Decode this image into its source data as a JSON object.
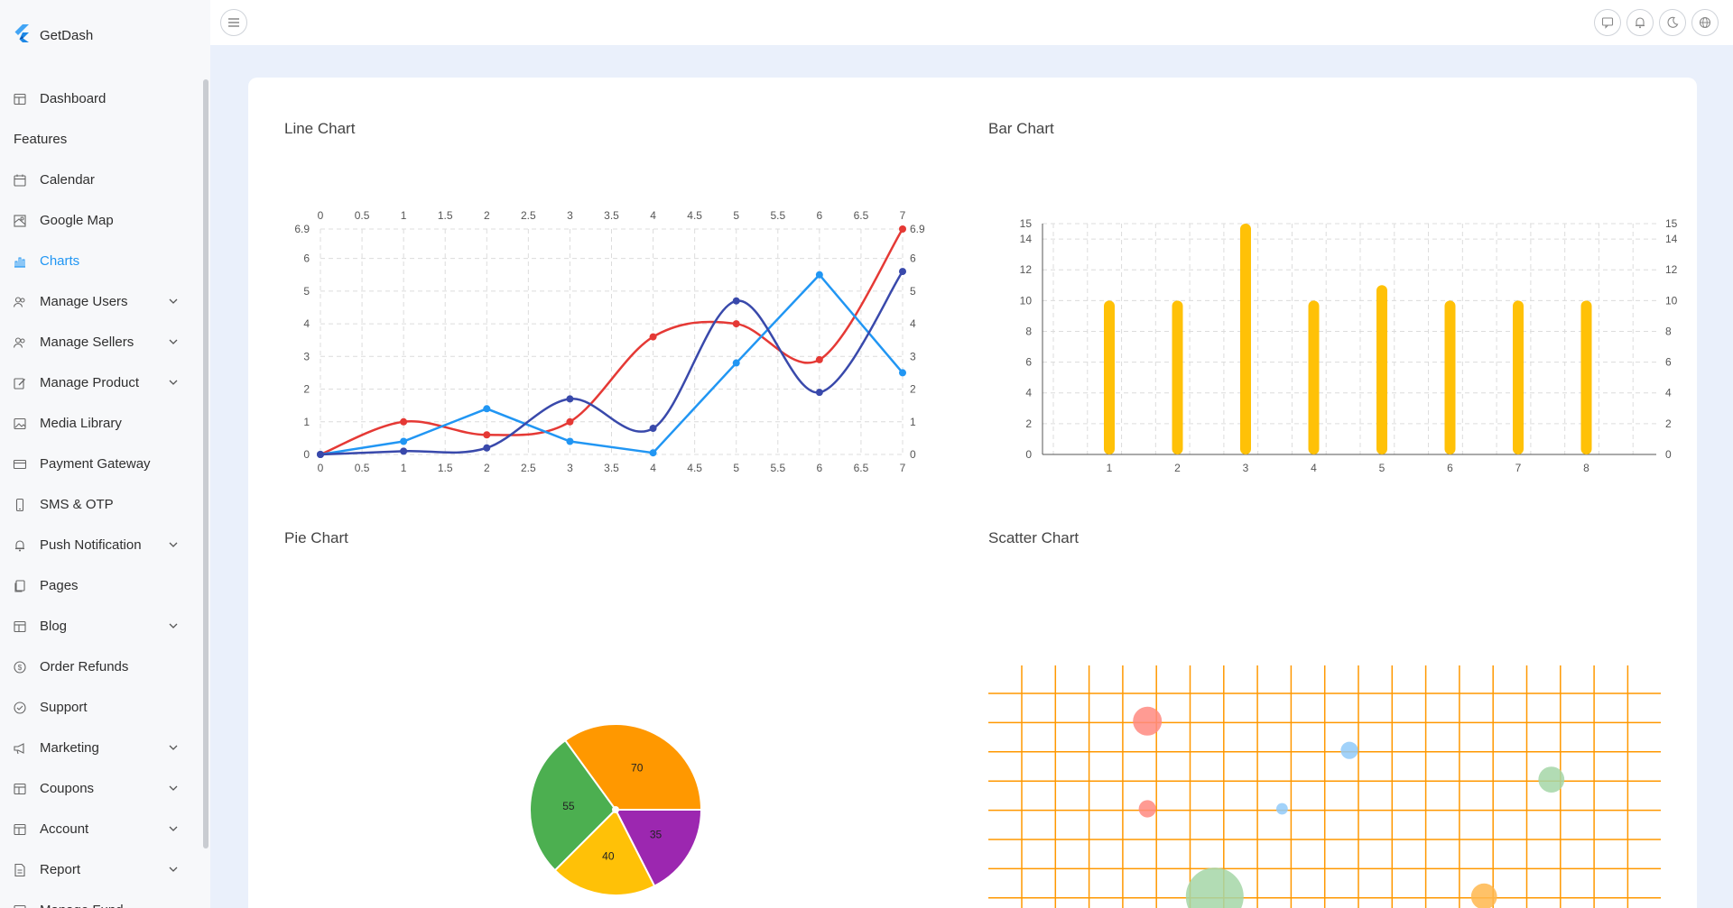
{
  "brand": {
    "name": "GetDash",
    "logo_icon": "flutter-logo-icon"
  },
  "sidebar": {
    "items": [
      {
        "label": "Dashboard",
        "icon": "dashboard-icon",
        "expandable": false,
        "active": false
      },
      {
        "section": "Features"
      },
      {
        "label": "Calendar",
        "icon": "calendar-icon",
        "expandable": false,
        "active": false
      },
      {
        "label": "Google Map",
        "icon": "map-icon",
        "expandable": false,
        "active": false
      },
      {
        "label": "Charts",
        "icon": "chart-icon",
        "expandable": false,
        "active": true
      },
      {
        "label": "Manage Users",
        "icon": "users-icon",
        "expandable": true,
        "active": false
      },
      {
        "label": "Manage Sellers",
        "icon": "sellers-icon",
        "expandable": true,
        "active": false
      },
      {
        "label": "Manage Product",
        "icon": "product-edit-icon",
        "expandable": true,
        "active": false
      },
      {
        "label": "Media Library",
        "icon": "image-icon",
        "expandable": false,
        "active": false
      },
      {
        "label": "Payment Gateway",
        "icon": "credit-card-icon",
        "expandable": false,
        "active": false
      },
      {
        "label": "SMS & OTP",
        "icon": "phone-icon",
        "expandable": false,
        "active": false
      },
      {
        "label": "Push Notification",
        "icon": "bell-icon",
        "expandable": true,
        "active": false
      },
      {
        "label": "Pages",
        "icon": "pages-icon",
        "expandable": false,
        "active": false
      },
      {
        "label": "Blog",
        "icon": "blog-icon",
        "expandable": true,
        "active": false
      },
      {
        "label": "Order Refunds",
        "icon": "dollar-icon",
        "expandable": false,
        "active": false
      },
      {
        "label": "Support",
        "icon": "support-icon",
        "expandable": false,
        "active": false
      },
      {
        "label": "Marketing",
        "icon": "megaphone-icon",
        "expandable": true,
        "active": false
      },
      {
        "label": "Coupons",
        "icon": "coupon-icon",
        "expandable": true,
        "active": false
      },
      {
        "label": "Account",
        "icon": "account-icon",
        "expandable": true,
        "active": false
      },
      {
        "label": "Report",
        "icon": "report-icon",
        "expandable": true,
        "active": false
      },
      {
        "label": "Manage Fund",
        "icon": "fund-icon",
        "expandable": false,
        "active": false
      }
    ]
  },
  "topbar": {
    "menu_icon": "menu-icon",
    "actions": [
      "message-icon",
      "bell-icon",
      "moon-icon",
      "globe-icon"
    ]
  },
  "colors": {
    "accent": "#2196f3",
    "line_red": "#e53935",
    "line_blue": "#2196f3",
    "line_indigo": "#3949ab",
    "bar": "#ffc107",
    "pie": [
      "#ff9800",
      "#4caf50",
      "#ffc107",
      "#9c27b0"
    ],
    "scatter_grid": "#ff9800"
  },
  "titles": {
    "line": "Line Chart",
    "bar": "Bar Chart",
    "pie": "Pie Chart",
    "scatter": "Scatter Chart"
  },
  "chart_data": [
    {
      "type": "line",
      "title": "Line Chart",
      "x": [
        0,
        1,
        2,
        3,
        4,
        5,
        6,
        7
      ],
      "xlim": [
        0,
        7
      ],
      "ylim": [
        0,
        6.9
      ],
      "x_ticks": [
        "0",
        "0.5",
        "1",
        "1.5",
        "2",
        "2.5",
        "3",
        "3.5",
        "4",
        "4.5",
        "5",
        "5.5",
        "6",
        "6.5",
        "7"
      ],
      "y_ticks": [
        "0",
        "1",
        "2",
        "3",
        "4",
        "5",
        "6",
        "6.9"
      ],
      "grid": true,
      "series": [
        {
          "color": "#e53935",
          "values": [
            0,
            1,
            0.6,
            1,
            3.6,
            4,
            2.9,
            6.9
          ]
        },
        {
          "color": "#2196f3",
          "values": [
            0,
            0.4,
            1.4,
            0.4,
            0.05,
            2.8,
            5.5,
            2.5
          ]
        },
        {
          "color": "#3949ab",
          "values": [
            0,
            0.1,
            0.2,
            1.7,
            0.8,
            4.7,
            1.9,
            5.6
          ]
        }
      ]
    },
    {
      "type": "bar",
      "title": "Bar Chart",
      "categories": [
        "1",
        "2",
        "3",
        "4",
        "5",
        "6",
        "7",
        "8"
      ],
      "values": [
        10,
        10,
        15,
        10,
        11,
        10,
        10,
        10
      ],
      "ylim": [
        0,
        15
      ],
      "y_ticks": [
        "0",
        "2",
        "4",
        "6",
        "8",
        "10",
        "12",
        "14",
        "15"
      ],
      "grid": true
    },
    {
      "type": "pie",
      "title": "Pie Chart",
      "values": [
        70,
        35,
        40,
        55
      ],
      "colors": [
        "#ff9800",
        "#9c27b0",
        "#ffc107",
        "#4caf50"
      ]
    },
    {
      "type": "scatter",
      "title": "Scatter Chart",
      "xlim": [
        0,
        20
      ],
      "ylim": [
        0,
        10
      ],
      "grid": true,
      "points": [
        {
          "x": 4,
          "y": 8,
          "size": 10,
          "color": "#ff8a80"
        },
        {
          "x": 10,
          "y": 7,
          "size": 6,
          "color": "#90caf9"
        },
        {
          "x": 16,
          "y": 6,
          "size": 9,
          "color": "#a5d6a7"
        },
        {
          "x": 4,
          "y": 5,
          "size": 6,
          "color": "#ff8a80"
        },
        {
          "x": 8,
          "y": 5,
          "size": 4,
          "color": "#90caf9"
        },
        {
          "x": 6,
          "y": 2,
          "size": 20,
          "color": "#a5d6a7"
        },
        {
          "x": 14,
          "y": 2,
          "size": 9,
          "color": "#ffb74d"
        }
      ]
    }
  ]
}
